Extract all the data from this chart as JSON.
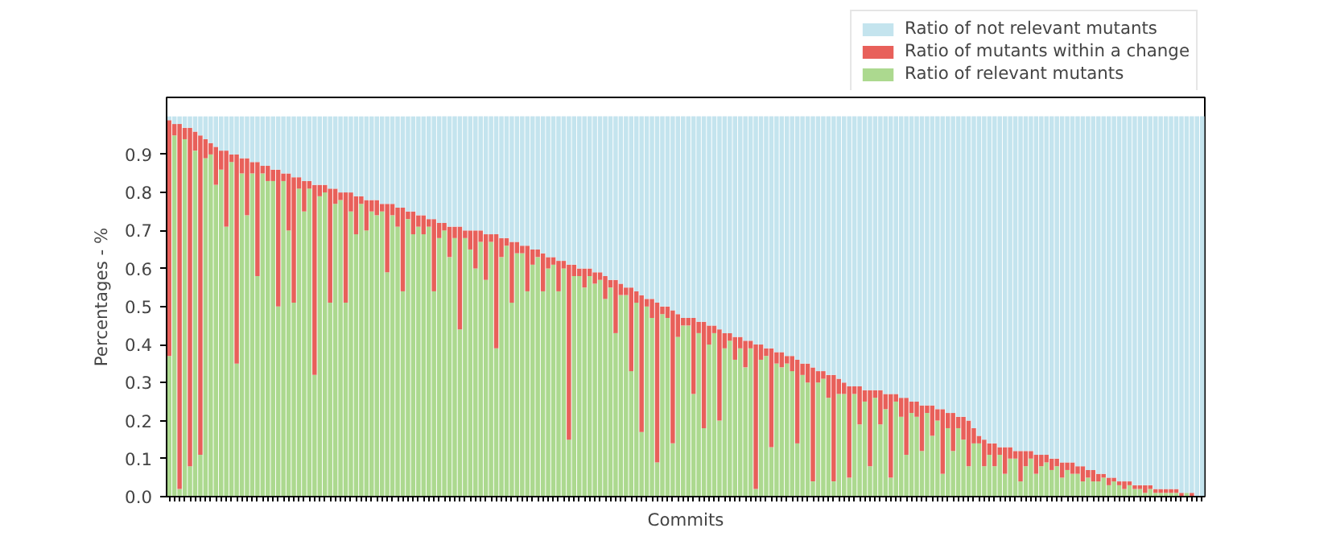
{
  "chart_data": {
    "type": "bar",
    "stacked": true,
    "xlabel": "Commits",
    "ylabel": "Percentages - %",
    "ylim": [
      0,
      1.05
    ],
    "yticks": [
      {
        "value": 0,
        "label": "0.0"
      },
      0.1,
      0.2,
      0.3,
      0.4,
      0.5,
      0.6,
      0.7,
      0.8,
      0.9
    ],
    "grid": false,
    "legend": "top right",
    "categories": [
      null,
      null,
      null,
      null,
      null,
      null,
      null,
      null,
      null,
      null,
      null,
      null,
      null,
      null,
      null,
      null,
      null,
      null,
      null,
      null,
      null,
      null,
      null,
      null,
      null,
      null,
      null,
      null,
      null,
      null,
      null,
      null,
      null,
      null,
      null,
      null,
      null,
      null,
      null,
      null,
      null,
      null,
      null,
      null,
      null,
      null,
      null,
      null,
      null,
      null,
      null,
      null,
      null,
      null,
      null,
      null,
      null,
      null,
      null,
      null,
      null,
      null,
      null,
      null,
      null,
      null,
      null,
      null,
      null,
      null,
      null,
      null,
      null,
      null,
      null,
      null,
      null,
      null,
      null,
      null,
      null,
      null,
      null,
      null,
      null,
      null,
      null,
      null,
      null,
      null,
      null,
      null,
      null,
      null,
      null,
      null,
      null,
      null,
      null,
      null,
      null,
      null,
      null,
      null,
      null,
      null,
      null,
      null,
      null,
      null,
      null,
      null,
      null,
      null,
      null,
      null,
      null,
      null,
      null,
      null,
      null,
      null,
      null,
      null,
      null,
      null,
      null,
      null,
      null,
      null,
      null,
      null,
      null,
      null,
      null,
      null,
      null,
      null,
      null,
      null,
      null,
      null,
      null,
      null,
      null,
      null,
      null,
      null,
      null,
      null,
      null,
      null,
      null,
      null,
      null,
      null,
      null,
      null,
      null,
      null,
      null,
      null,
      null,
      null,
      null,
      null,
      null,
      null,
      null,
      null,
      null,
      null,
      null,
      null,
      null,
      null,
      null,
      null,
      null,
      null,
      null,
      null,
      null,
      null,
      null,
      null,
      null,
      null,
      null,
      null,
      null,
      null,
      null,
      null,
      null,
      null,
      null,
      null,
      null,
      null
    ],
    "series": [
      {
        "name": "Ratio of relevant mutants",
        "color": "#acd98f",
        "values": [
          0.37,
          0.95,
          0.02,
          0.94,
          0.08,
          0.91,
          0.11,
          0.89,
          0.9,
          0.82,
          0.86,
          0.71,
          0.88,
          0.35,
          0.85,
          0.74,
          0.85,
          0.58,
          0.85,
          0.83,
          0.83,
          0.5,
          0.83,
          0.7,
          0.51,
          0.81,
          0.75,
          0.81,
          0.32,
          0.79,
          0.8,
          0.51,
          0.77,
          0.78,
          0.51,
          0.75,
          0.69,
          0.77,
          0.7,
          0.75,
          0.74,
          0.75,
          0.59,
          0.74,
          0.71,
          0.54,
          0.73,
          0.69,
          0.71,
          0.69,
          0.71,
          0.54,
          0.68,
          0.7,
          0.63,
          0.68,
          0.44,
          0.68,
          0.65,
          0.6,
          0.67,
          0.57,
          0.67,
          0.39,
          0.63,
          0.66,
          0.51,
          0.64,
          0.64,
          0.54,
          0.61,
          0.63,
          0.54,
          0.6,
          0.61,
          0.54,
          0.6,
          0.15,
          0.58,
          0.58,
          0.55,
          0.58,
          0.56,
          0.57,
          0.52,
          0.55,
          0.43,
          0.53,
          0.53,
          0.33,
          0.51,
          0.17,
          0.5,
          0.47,
          0.09,
          0.48,
          0.47,
          0.14,
          0.42,
          0.45,
          0.45,
          0.27,
          0.43,
          0.18,
          0.4,
          0.43,
          0.2,
          0.39,
          0.41,
          0.36,
          0.39,
          0.34,
          0.39,
          0.02,
          0.36,
          0.37,
          0.13,
          0.35,
          0.34,
          0.35,
          0.33,
          0.14,
          0.32,
          0.3,
          0.04,
          0.3,
          0.31,
          0.26,
          0.04,
          0.27,
          0.27,
          0.05,
          0.27,
          0.19,
          0.25,
          0.08,
          0.26,
          0.19,
          0.23,
          0.05,
          0.25,
          0.21,
          0.11,
          0.22,
          0.21,
          0.12,
          0.22,
          0.16,
          0.2,
          0.06,
          0.18,
          0.12,
          0.18,
          0.15,
          0.08,
          0.14,
          0.14,
          0.08,
          0.11,
          0.08,
          0.11,
          0.06,
          0.1,
          0.1,
          0.04,
          0.08,
          0.1,
          0.06,
          0.08,
          0.09,
          0.07,
          0.08,
          0.05,
          0.07,
          0.06,
          0.06,
          0.04,
          0.05,
          0.04,
          0.04,
          0.05,
          0.03,
          0.04,
          0.03,
          0.02,
          0.03,
          0.02,
          0.02,
          0.01,
          0.02,
          0.01,
          0.01,
          0.01,
          0.01,
          0.01,
          0.0,
          0.01,
          0.0,
          0,
          0
        ]
      },
      {
        "name": "Ratio of mutants within a change",
        "color": "#e8605a",
        "values": [
          0.62,
          0.03,
          0.96,
          0.03,
          0.89,
          0.05,
          0.84,
          0.05,
          0.03,
          0.1,
          0.05,
          0.2,
          0.02,
          0.55,
          0.04,
          0.15,
          0.03,
          0.3,
          0.02,
          0.04,
          0.03,
          0.36,
          0.02,
          0.15,
          0.33,
          0.03,
          0.08,
          0.02,
          0.5,
          0.03,
          0.02,
          0.3,
          0.04,
          0.02,
          0.29,
          0.05,
          0.1,
          0.02,
          0.08,
          0.03,
          0.04,
          0.02,
          0.18,
          0.03,
          0.05,
          0.22,
          0.02,
          0.06,
          0.03,
          0.05,
          0.02,
          0.19,
          0.04,
          0.02,
          0.08,
          0.03,
          0.27,
          0.02,
          0.05,
          0.1,
          0.03,
          0.12,
          0.02,
          0.3,
          0.05,
          0.02,
          0.16,
          0.03,
          0.02,
          0.12,
          0.04,
          0.02,
          0.1,
          0.03,
          0.02,
          0.08,
          0.02,
          0.46,
          0.03,
          0.02,
          0.05,
          0.02,
          0.03,
          0.02,
          0.06,
          0.02,
          0.14,
          0.03,
          0.02,
          0.22,
          0.03,
          0.36,
          0.02,
          0.05,
          0.42,
          0.02,
          0.03,
          0.35,
          0.06,
          0.02,
          0.02,
          0.2,
          0.03,
          0.28,
          0.05,
          0.02,
          0.24,
          0.04,
          0.02,
          0.06,
          0.03,
          0.07,
          0.02,
          0.38,
          0.04,
          0.02,
          0.26,
          0.03,
          0.04,
          0.02,
          0.04,
          0.22,
          0.03,
          0.05,
          0.3,
          0.03,
          0.02,
          0.06,
          0.28,
          0.04,
          0.03,
          0.24,
          0.02,
          0.1,
          0.03,
          0.2,
          0.02,
          0.09,
          0.04,
          0.22,
          0.02,
          0.05,
          0.15,
          0.03,
          0.04,
          0.12,
          0.02,
          0.08,
          0.03,
          0.17,
          0.04,
          0.1,
          0.03,
          0.06,
          0.12,
          0.04,
          0.02,
          0.07,
          0.03,
          0.06,
          0.02,
          0.07,
          0.03,
          0.02,
          0.08,
          0.04,
          0.02,
          0.05,
          0.03,
          0.02,
          0.03,
          0.02,
          0.04,
          0.02,
          0.03,
          0.02,
          0.04,
          0.02,
          0.03,
          0.02,
          0.01,
          0.02,
          0.01,
          0.01,
          0.02,
          0.01,
          0.01,
          0.01,
          0.02,
          0.01,
          0.01,
          0.01,
          0.01,
          0.01,
          0.01,
          0.01,
          0.0,
          0.01,
          0,
          0
        ]
      },
      {
        "name": "Ratio of not relevant mutants",
        "color": "#c4e4ee",
        "values": [
          0.01,
          0.02,
          0.02,
          0.03,
          0.03,
          0.04,
          0.05,
          0.06,
          0.07,
          0.08,
          0.09,
          0.09,
          0.1,
          0.1,
          0.11,
          0.11,
          0.12,
          0.12,
          0.13,
          0.13,
          0.14,
          0.14,
          0.15,
          0.15,
          0.16,
          0.16,
          0.17,
          0.17,
          0.18,
          0.18,
          0.18,
          0.19,
          0.19,
          0.2,
          0.2,
          0.2,
          0.21,
          0.21,
          0.22,
          0.22,
          0.22,
          0.23,
          0.23,
          0.23,
          0.24,
          0.24,
          0.25,
          0.25,
          0.26,
          0.26,
          0.27,
          0.27,
          0.28,
          0.28,
          0.29,
          0.29,
          0.29,
          0.3,
          0.3,
          0.3,
          0.3,
          0.31,
          0.31,
          0.31,
          0.32,
          0.32,
          0.33,
          0.33,
          0.34,
          0.34,
          0.35,
          0.35,
          0.36,
          0.37,
          0.37,
          0.38,
          0.38,
          0.39,
          0.39,
          0.4,
          0.4,
          0.4,
          0.41,
          0.41,
          0.42,
          0.43,
          0.43,
          0.44,
          0.45,
          0.45,
          0.46,
          0.47,
          0.48,
          0.48,
          0.49,
          0.5,
          0.5,
          0.51,
          0.52,
          0.53,
          0.53,
          0.53,
          0.54,
          0.54,
          0.55,
          0.55,
          0.56,
          0.57,
          0.57,
          0.58,
          0.58,
          0.59,
          0.59,
          0.6,
          0.6,
          0.61,
          0.61,
          0.62,
          0.62,
          0.63,
          0.63,
          0.64,
          0.65,
          0.65,
          0.66,
          0.67,
          0.67,
          0.68,
          0.68,
          0.69,
          0.7,
          0.71,
          0.71,
          0.71,
          0.72,
          0.72,
          0.72,
          0.72,
          0.73,
          0.73,
          0.73,
          0.74,
          0.74,
          0.75,
          0.75,
          0.76,
          0.76,
          0.76,
          0.77,
          0.77,
          0.78,
          0.78,
          0.79,
          0.79,
          0.8,
          0.82,
          0.84,
          0.85,
          0.86,
          0.86,
          0.87,
          0.87,
          0.87,
          0.88,
          0.88,
          0.88,
          0.88,
          0.89,
          0.89,
          0.89,
          0.9,
          0.9,
          0.91,
          0.91,
          0.91,
          0.92,
          0.92,
          0.93,
          0.93,
          0.94,
          0.94,
          0.95,
          0.95,
          0.96,
          0.96,
          0.96,
          0.97,
          0.97,
          0.97,
          0.97,
          0.98,
          0.98,
          0.98,
          0.98,
          0.98,
          0.99,
          0.99,
          0.99,
          1,
          1
        ]
      }
    ]
  }
}
